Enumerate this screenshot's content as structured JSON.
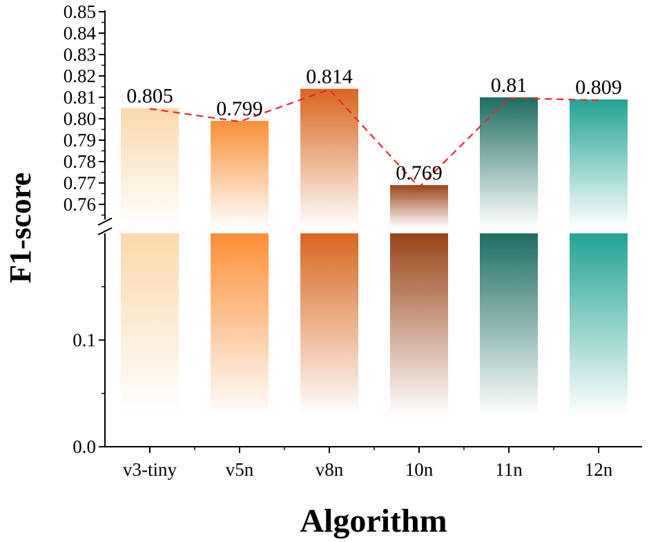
{
  "chart_data": {
    "type": "bar",
    "xlabel": "Algorithm",
    "ylabel": "F1-score",
    "categories": [
      "v3-tiny",
      "v5n",
      "v8n",
      "10n",
      "11n",
      "12n"
    ],
    "values": [
      0.805,
      0.799,
      0.814,
      0.769,
      0.81,
      0.809
    ],
    "data_labels": [
      "0.805",
      "0.799",
      "0.814",
      "0.769",
      "0.81",
      "0.809"
    ],
    "bar_colors": [
      "#fad9ab",
      "#fb8f36",
      "#d9661f",
      "#994417",
      "#1d6e63",
      "#22a394"
    ],
    "axis_break": true,
    "y_segments": [
      {
        "range": [
          0.755,
          0.85
        ],
        "ticks": [
          "0.76",
          "0.77",
          "0.78",
          "0.79",
          "0.80",
          "0.81",
          "0.82",
          "0.83",
          "0.84",
          "0.85"
        ]
      },
      {
        "range": [
          0.0,
          0.2
        ],
        "ticks": [
          "0.0",
          "0.1"
        ]
      }
    ],
    "trend_line": {
      "style": "dashed",
      "color": "#e8262a"
    },
    "grid": false,
    "legend": "none"
  }
}
